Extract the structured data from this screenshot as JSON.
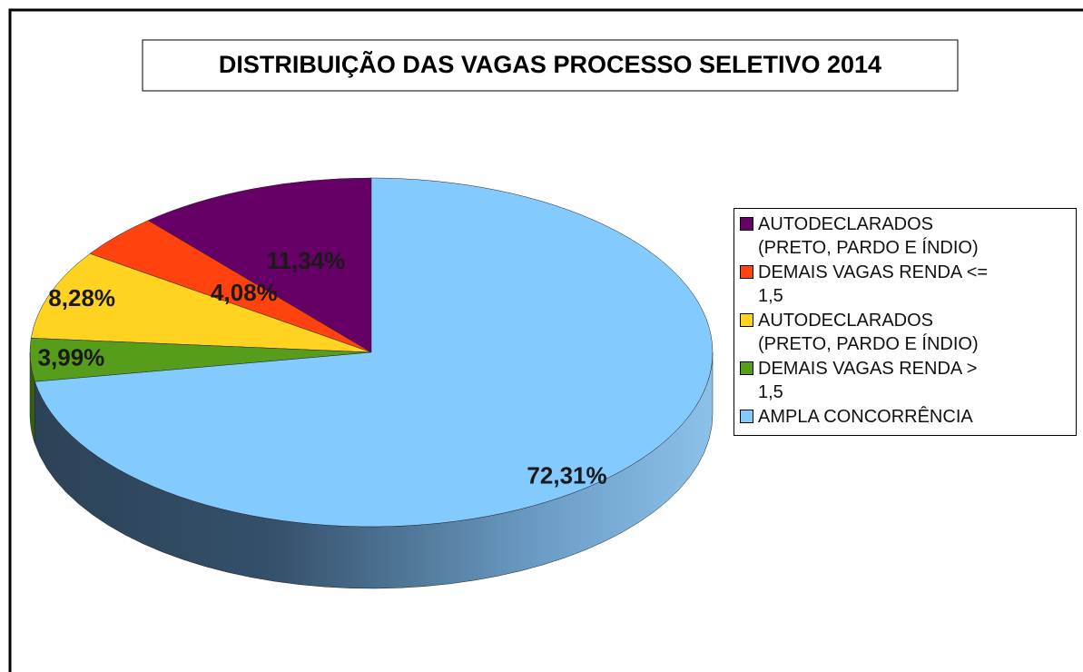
{
  "chart_data": {
    "type": "pie",
    "title": "DISTRIBUIÇÃO DAS VAGAS PROCESSO SELETIVO 2014",
    "categories": [
      "AUTODECLARADOS\n(PRETO, PARDO E ÍNDIO)",
      "DEMAIS VAGAS RENDA <=\n1,5",
      "AUTODECLARADOS\n(PRETO, PARDO E ÍNDIO)",
      "DEMAIS VAGAS RENDA >\n1,5",
      "AMPLA CONCORRÊNCIA"
    ],
    "values": [
      11.34,
      4.08,
      8.28,
      3.99,
      72.31
    ],
    "value_labels": [
      "11,34%",
      "4,08%",
      "8,28%",
      "3,99%",
      "72,31%"
    ],
    "colors": [
      "#660066",
      "#ff420e",
      "#ffd320",
      "#579d1c",
      "#83caff"
    ],
    "legend": "right"
  }
}
